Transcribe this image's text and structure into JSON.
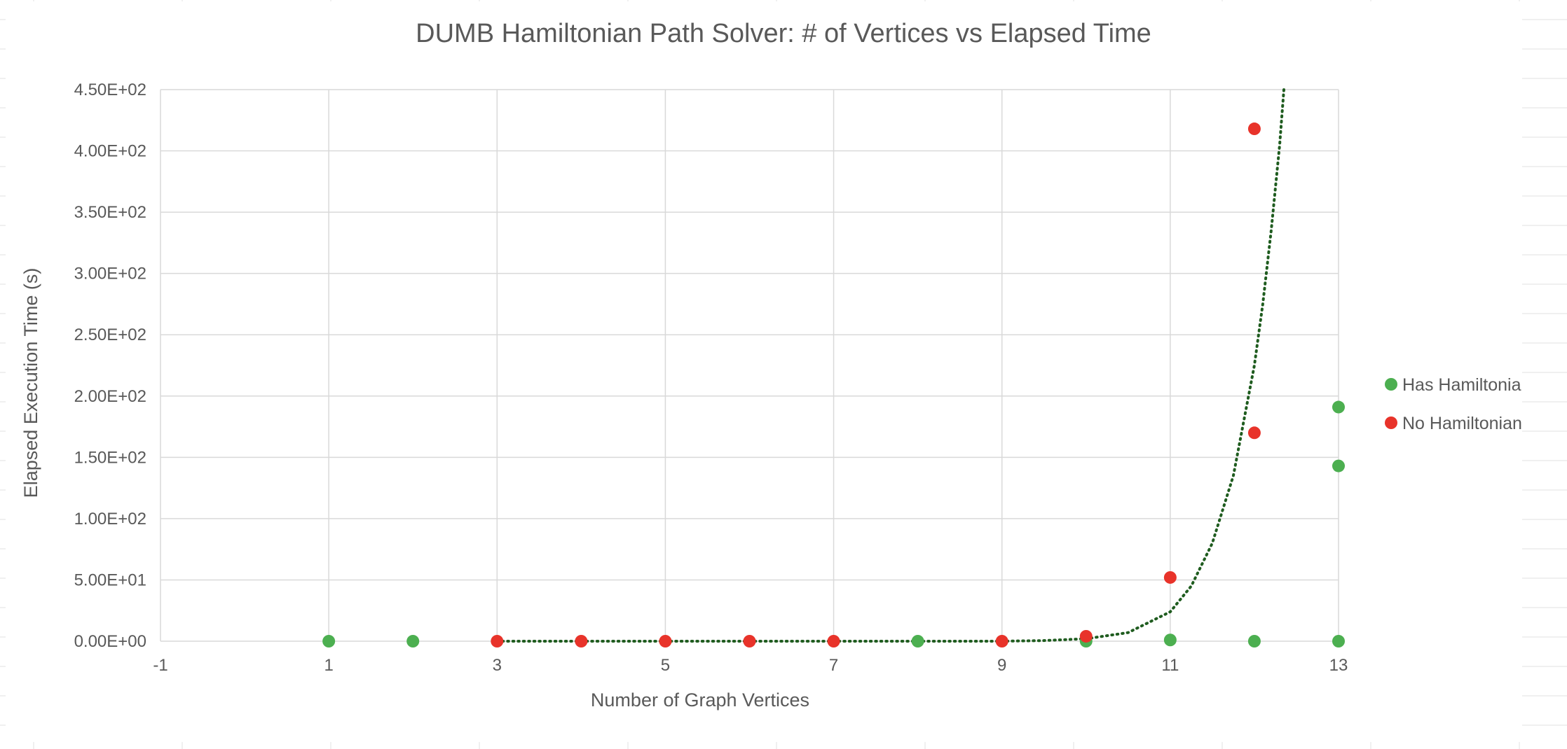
{
  "colors": {
    "has_hamiltonian": "#4CAF50",
    "no_hamiltonian": "#E8332A",
    "trendline": "#1F5C1F",
    "gridline": "#D9D9D9",
    "text": "#595959",
    "sheet_grid": "#E2E2E2"
  },
  "chart_data": {
    "type": "scatter",
    "title": "DUMB Hamiltonian Path Solver: # of Vertices vs Elapsed Time",
    "xlabel": "Number of Graph Vertices",
    "ylabel": "Elapsed Execution Time (s)",
    "xlim": [
      -1,
      13
    ],
    "ylim": [
      0,
      450
    ],
    "x_ticks": [
      -1,
      1,
      3,
      5,
      7,
      9,
      11,
      13
    ],
    "x_tick_labels": [
      "-1",
      "1",
      "3",
      "5",
      "7",
      "9",
      "11",
      "13"
    ],
    "y_ticks": [
      0,
      50,
      100,
      150,
      200,
      250,
      300,
      350,
      400,
      450
    ],
    "y_tick_labels": [
      "0.00E+00",
      "5.00E+01",
      "1.00E+02",
      "1.50E+02",
      "2.00E+02",
      "2.50E+02",
      "3.00E+02",
      "3.50E+02",
      "4.00E+02",
      "4.50E+02"
    ],
    "grid": true,
    "legend_position": "right",
    "series": [
      {
        "name": "Has Hamiltonian",
        "color": "#4CAF50",
        "points": [
          {
            "x": 1,
            "y": 0
          },
          {
            "x": 2,
            "y": 0
          },
          {
            "x": 8,
            "y": 0
          },
          {
            "x": 10,
            "y": 0
          },
          {
            "x": 11,
            "y": 1
          },
          {
            "x": 12,
            "y": 0
          },
          {
            "x": 13,
            "y": 0
          },
          {
            "x": 13,
            "y": 143
          },
          {
            "x": 13,
            "y": 191
          }
        ]
      },
      {
        "name": "No Hamiltonian",
        "color": "#E8332A",
        "points": [
          {
            "x": 3,
            "y": 0
          },
          {
            "x": 4,
            "y": 0
          },
          {
            "x": 5,
            "y": 0
          },
          {
            "x": 6,
            "y": 0
          },
          {
            "x": 7,
            "y": 0
          },
          {
            "x": 9,
            "y": 0
          },
          {
            "x": 10,
            "y": 4
          },
          {
            "x": 11,
            "y": 52
          },
          {
            "x": 12,
            "y": 170
          },
          {
            "x": 12,
            "y": 418
          }
        ]
      }
    ],
    "trendline": {
      "type": "exponential",
      "style": "dotted",
      "color": "#1F5C1F",
      "points": [
        {
          "x": 3,
          "y": 0
        },
        {
          "x": 9,
          "y": 0
        },
        {
          "x": 9.5,
          "y": 0.5
        },
        {
          "x": 10,
          "y": 2
        },
        {
          "x": 10.5,
          "y": 7
        },
        {
          "x": 11,
          "y": 24
        },
        {
          "x": 11.25,
          "y": 45
        },
        {
          "x": 11.5,
          "y": 80
        },
        {
          "x": 11.75,
          "y": 135
        },
        {
          "x": 12,
          "y": 225
        },
        {
          "x": 12.1,
          "y": 275
        },
        {
          "x": 12.2,
          "y": 335
        },
        {
          "x": 12.3,
          "y": 405
        },
        {
          "x": 12.35,
          "y": 450
        }
      ]
    }
  }
}
